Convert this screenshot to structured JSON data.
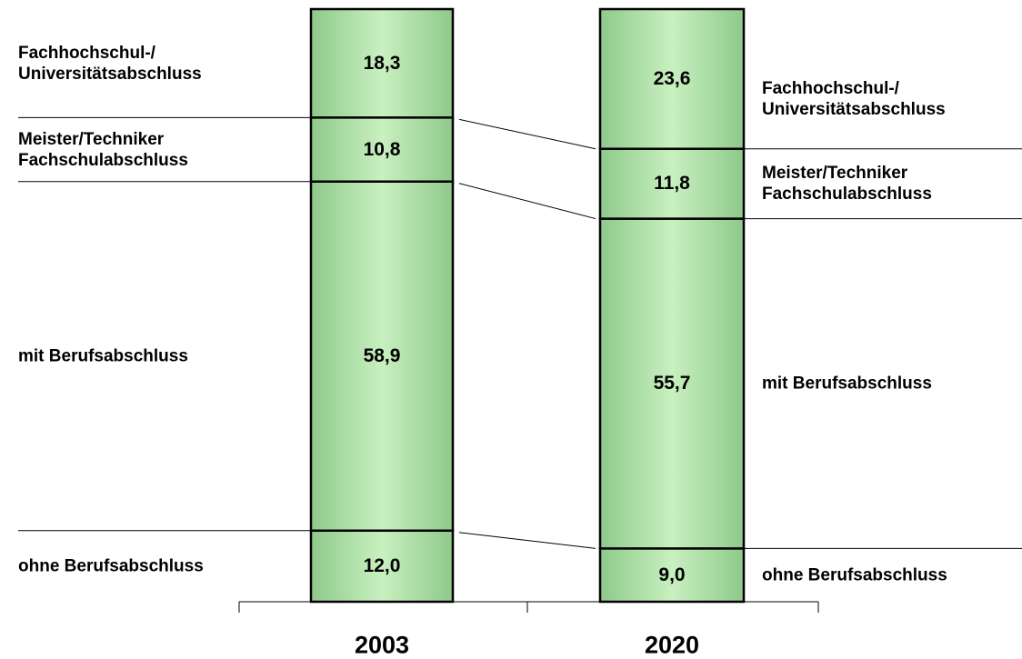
{
  "chart_data": {
    "type": "stacked_bar",
    "categories": [
      "2003",
      "2020"
    ],
    "color": "#c8f0c0",
    "series": [
      {
        "name": "ohne Berufsabschluss",
        "values": [
          12.0,
          9.0
        ],
        "value_labels": [
          "12,0",
          "9,0"
        ]
      },
      {
        "name": "mit Berufsabschluss",
        "values": [
          58.9,
          55.7
        ],
        "value_labels": [
          "58,9",
          "55,7"
        ]
      },
      {
        "name": "Meister/Techniker\nFachschulabschluss",
        "values": [
          10.8,
          11.8
        ],
        "value_labels": [
          "10,8",
          "11,8"
        ]
      },
      {
        "name": "Fachhochschul-/\nUniversitätsabschluss",
        "values": [
          18.3,
          23.6
        ],
        "value_labels": [
          "18,3",
          "23,6"
        ]
      }
    ]
  }
}
